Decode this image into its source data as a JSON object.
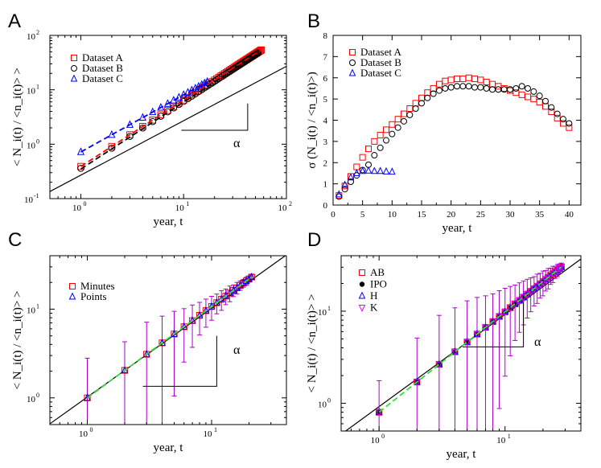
{
  "chart_data": [
    {
      "panel": "A",
      "type": "scatter",
      "xscale": "log",
      "yscale": "log",
      "xlim": [
        0.5,
        100
      ],
      "ylim": [
        0.1,
        100
      ],
      "xticks": [
        {
          "v": 1,
          "base": "10",
          "exp": "0"
        },
        {
          "v": 10,
          "base": "10",
          "exp": "1"
        },
        {
          "v": 100,
          "base": "10",
          "exp": "2"
        }
      ],
      "yticks": [
        {
          "v": 0.1,
          "base": "10",
          "exp": "-1"
        },
        {
          "v": 1,
          "base": "10",
          "exp": "0"
        },
        {
          "v": 10,
          "base": "10",
          "exp": "1"
        },
        {
          "v": 100,
          "base": "10",
          "exp": "2"
        }
      ],
      "xlabel": "year, t",
      "ylabel": "< N_i(t) / <n_i(t)> >",
      "slope_label": "α",
      "legend": [
        {
          "label": "Dataset A",
          "marker": "square",
          "color": "#ff0000"
        },
        {
          "label": "Dataset B",
          "marker": "circle",
          "color": "#000000"
        },
        {
          "label": "Dataset C",
          "marker": "triangle",
          "color": "#0000ff"
        }
      ],
      "series": [
        {
          "name": "Dataset A",
          "marker": "square",
          "color": "#ff0000",
          "xstart": 1,
          "xend": 57,
          "y0": 0.39,
          "slope": 1.22
        },
        {
          "name": "Dataset B",
          "marker": "circle",
          "color": "#000000",
          "xstart": 1,
          "xend": 53,
          "y0": 0.36,
          "slope": 1.23
        },
        {
          "name": "Dataset C",
          "marker": "triangle",
          "color": "#0000ff",
          "xstart": 1,
          "xend": 17,
          "y0": 0.72,
          "slope": 1.05
        }
      ],
      "fits": [
        {
          "color": "#ff0000",
          "style": "dashed",
          "x": [
            1,
            57
          ],
          "y0": 0.39,
          "slope": 1.22
        },
        {
          "color": "#000000",
          "style": "dashed",
          "x": [
            1,
            53
          ],
          "y0": 0.35,
          "slope": 1.23
        },
        {
          "color": "#0000ff",
          "style": "dashed",
          "x": [
            1,
            17
          ],
          "y0": 0.72,
          "slope": 1.05
        }
      ],
      "reference_line": {
        "color": "#000000",
        "slope": 1.0,
        "x": [
          0.5,
          100
        ],
        "y_at_1": 0.27
      },
      "slope_marker": {
        "x": [
          9.5,
          42
        ],
        "y": [
          5.6,
          1.8
        ]
      }
    },
    {
      "panel": "B",
      "type": "scatter",
      "xscale": "linear",
      "yscale": "linear",
      "xlim": [
        0,
        42
      ],
      "ylim": [
        0,
        8
      ],
      "xticks": [
        0,
        5,
        10,
        15,
        20,
        25,
        30,
        35,
        40
      ],
      "yticks": [
        0,
        1,
        2,
        3,
        4,
        5,
        6,
        7,
        8
      ],
      "xlabel": "year, t",
      "ylabel": "σ (N_i(t) / <n_i(t)>)",
      "legend": [
        {
          "label": "Dataset A",
          "marker": "square",
          "color": "#ff0000"
        },
        {
          "label": "Dataset B",
          "marker": "circle",
          "color": "#000000"
        },
        {
          "label": "Dataset C",
          "marker": "triangle",
          "color": "#0000ff"
        }
      ],
      "series": [
        {
          "name": "Dataset A",
          "marker": "square",
          "color": "#ff0000",
          "x": [
            1,
            2,
            3,
            4,
            5,
            6,
            7,
            8,
            9,
            10,
            11,
            12,
            13,
            14,
            15,
            16,
            17,
            18,
            19,
            20,
            21,
            22,
            23,
            24,
            25,
            26,
            27,
            28,
            29,
            30,
            31,
            32,
            33,
            34,
            35,
            36,
            37,
            38,
            39,
            40
          ],
          "y": [
            0.45,
            0.9,
            1.35,
            1.8,
            2.25,
            2.65,
            3.0,
            3.3,
            3.55,
            3.8,
            4.05,
            4.3,
            4.55,
            4.8,
            5.05,
            5.3,
            5.5,
            5.7,
            5.85,
            5.9,
            5.95,
            5.95,
            6.0,
            5.95,
            5.9,
            5.8,
            5.7,
            5.6,
            5.5,
            5.4,
            5.3,
            5.2,
            5.1,
            5.0,
            4.85,
            4.65,
            4.4,
            4.1,
            3.85,
            3.65
          ]
        },
        {
          "name": "Dataset B",
          "marker": "circle",
          "color": "#000000",
          "x": [
            1,
            2,
            3,
            4,
            5,
            6,
            7,
            8,
            9,
            10,
            11,
            12,
            13,
            14,
            15,
            16,
            17,
            18,
            19,
            20,
            21,
            22,
            23,
            24,
            25,
            26,
            27,
            28,
            29,
            30,
            31,
            32,
            33,
            34,
            35,
            36,
            37,
            38,
            39,
            40
          ],
          "y": [
            0.4,
            0.75,
            1.1,
            1.4,
            1.65,
            1.9,
            2.35,
            2.7,
            3.05,
            3.35,
            3.65,
            3.95,
            4.25,
            4.55,
            4.8,
            5.05,
            5.25,
            5.4,
            5.5,
            5.55,
            5.6,
            5.6,
            5.6,
            5.55,
            5.55,
            5.5,
            5.45,
            5.45,
            5.45,
            5.45,
            5.5,
            5.6,
            5.5,
            5.35,
            5.15,
            4.9,
            4.6,
            4.3,
            4.05,
            3.85
          ]
        },
        {
          "name": "Dataset C",
          "marker": "triangle",
          "color": "#0000ff",
          "x": [
            1,
            2,
            3,
            4,
            5,
            6,
            7,
            8,
            9,
            10
          ],
          "y": [
            0.5,
            0.95,
            1.3,
            1.5,
            1.6,
            1.62,
            1.6,
            1.6,
            1.58,
            1.57
          ]
        }
      ]
    },
    {
      "panel": "C",
      "type": "scatter",
      "xscale": "log",
      "yscale": "log",
      "xlim": [
        0.5,
        40
      ],
      "ylim": [
        0.5,
        40
      ],
      "xticks": [
        {
          "v": 1,
          "base": "10",
          "exp": "0"
        },
        {
          "v": 10,
          "base": "10",
          "exp": "1"
        }
      ],
      "yticks": [
        {
          "v": 1,
          "base": "10",
          "exp": "0"
        },
        {
          "v": 10,
          "base": "10",
          "exp": "1"
        }
      ],
      "xlabel": "year, t",
      "ylabel": "< N_i(t) / <n_i(t)> >",
      "slope_label": "α",
      "legend": [
        {
          "label": "Minutes",
          "marker": "square",
          "color": "#ff0000"
        },
        {
          "label": "Points",
          "marker": "triangle",
          "color": "#0000ff"
        }
      ],
      "series": [
        {
          "name": "Minutes",
          "marker": "square",
          "color": "#ff0000",
          "errcolor": "#aa00cc",
          "xstart": 1,
          "xend": 21,
          "y0": 1.0,
          "slope": 1.03,
          "err": [
            1.8,
            1.1,
            1.3,
            1.0,
            0.8,
            0.6,
            0.5,
            0.4,
            0.35,
            0.3,
            0.25,
            0.25,
            0.2,
            0.2,
            0.15,
            0.15,
            0.12,
            0.1,
            0.1,
            0.08,
            0.06
          ]
        },
        {
          "name": "Points",
          "marker": "triangle",
          "color": "#0000ff",
          "xstart": 1,
          "xend": 21,
          "y0": 1.0,
          "slope": 1.03
        }
      ],
      "fits": [
        {
          "color": "#33dd33",
          "style": "dashed",
          "x": [
            1,
            21
          ],
          "y0": 1.0,
          "slope": 1.03
        }
      ],
      "reference_line": {
        "color": "#000000",
        "slope": 1.0,
        "x": [
          0.5,
          40
        ],
        "y_at_1": 1.02
      },
      "slope_marker": {
        "x": [
          2.8,
          11
        ],
        "y": [
          5.0,
          1.35
        ]
      }
    },
    {
      "panel": "D",
      "type": "scatter",
      "xscale": "log",
      "yscale": "log",
      "xlim": [
        0.5,
        40
      ],
      "ylim": [
        0.5,
        40
      ],
      "xticks": [
        {
          "v": 1,
          "base": "10",
          "exp": "0"
        },
        {
          "v": 10,
          "base": "10",
          "exp": "1"
        }
      ],
      "yticks": [
        {
          "v": 1,
          "base": "10",
          "exp": "0"
        },
        {
          "v": 10,
          "base": "10",
          "exp": "1"
        }
      ],
      "xlabel": "year, t",
      "ylabel": "< N_i(t) / <n_i(t)> >",
      "slope_label": "α",
      "legend": [
        {
          "label": "AB",
          "marker": "square",
          "color": "#ff0000"
        },
        {
          "label": "IPO",
          "marker": "dot",
          "color": "#000000"
        },
        {
          "label": "H",
          "marker": "triangle",
          "color": "#0000ff"
        },
        {
          "label": "K",
          "marker": "triangle-down",
          "color": "#ee00ee"
        }
      ],
      "series": [
        {
          "name": "AB",
          "marker": "square",
          "color": "#ff0000",
          "errcolor": "#aa00cc",
          "xstart": 1,
          "xend": 28,
          "y0": 0.8,
          "slope": 1.09,
          "err": [
            1.2,
            2.0,
            2.4,
            2.0,
            1.8,
            1.5,
            1.2,
            1.0,
            0.9,
            0.8,
            0.7,
            0.6,
            0.55,
            0.5,
            0.45,
            0.4,
            0.35,
            0.35,
            0.3,
            0.3,
            0.25,
            0.25,
            0.2,
            0.2,
            0.15,
            0.15,
            0.12,
            0.1
          ]
        },
        {
          "name": "IPO",
          "marker": "dot",
          "color": "#000000",
          "xstart": 1,
          "xend": 28,
          "y0": 0.8,
          "slope": 1.09
        },
        {
          "name": "H",
          "marker": "triangle",
          "color": "#0000ff",
          "xstart": 1,
          "xend": 28,
          "y0": 0.8,
          "slope": 1.09
        },
        {
          "name": "K",
          "marker": "triangle-down",
          "color": "#ee00ee",
          "xstart": 1,
          "xend": 28,
          "y0": 0.8,
          "slope": 1.09
        }
      ],
      "fits": [
        {
          "color": "#33dd33",
          "style": "dashed",
          "x": [
            1,
            28
          ],
          "y0": 0.8,
          "slope": 1.09
        }
      ],
      "reference_line": {
        "color": "#000000",
        "slope": 1.0,
        "x": [
          0.5,
          40
        ],
        "y_at_1": 0.92
      },
      "slope_marker": {
        "x": [
          4.6,
          14
        ],
        "y": [
          12.5,
          4.1
        ]
      }
    }
  ]
}
